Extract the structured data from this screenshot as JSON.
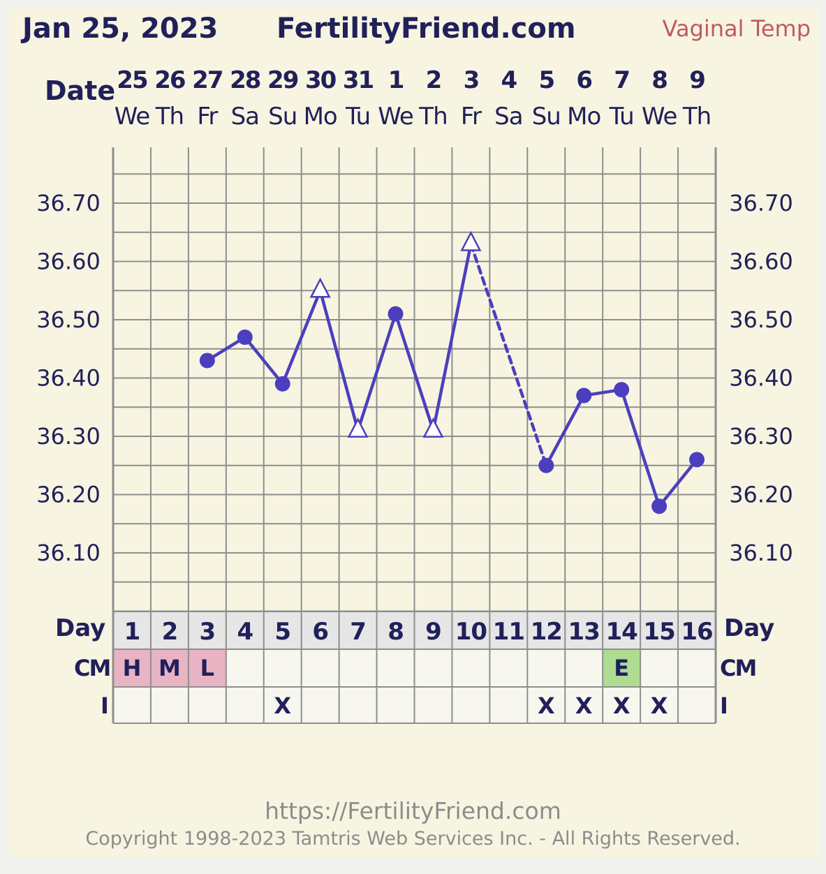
{
  "header": {
    "chart_date": "Jan 25, 2023",
    "site_name": "FertilityFriend.com",
    "temp_type": "Vaginal Temp",
    "date_label": "Date"
  },
  "colors": {
    "background": "#f7f5e1",
    "line": "#4b3fbf",
    "text": "#21205a",
    "cm_pink": "#e8b4c4",
    "cm_green": "#aedc90",
    "temp_label": "#c05a5e"
  },
  "chart_data": {
    "type": "line",
    "title": "",
    "ylabel": "",
    "ylim": [
      36.0,
      36.8
    ],
    "grid": true,
    "y_ticks": [
      "36.70",
      "36.60",
      "36.50",
      "36.40",
      "36.30",
      "36.20",
      "36.10"
    ],
    "y_tick_values": [
      36.7,
      36.6,
      36.5,
      36.4,
      36.3,
      36.2,
      36.1
    ],
    "dates": [
      "25",
      "26",
      "27",
      "28",
      "29",
      "30",
      "31",
      "1",
      "2",
      "3",
      "4",
      "5",
      "6",
      "7",
      "8",
      "9"
    ],
    "weekdays": [
      "We",
      "Th",
      "Fr",
      "Sa",
      "Su",
      "Mo",
      "Tu",
      "We",
      "Th",
      "Fr",
      "Sa",
      "Su",
      "Mo",
      "Tu",
      "We",
      "Th"
    ],
    "cycle_days": [
      "1",
      "2",
      "3",
      "4",
      "5",
      "6",
      "7",
      "8",
      "9",
      "10",
      "11",
      "12",
      "13",
      "14",
      "15",
      "16"
    ],
    "series": [
      {
        "values": [
          null,
          null,
          36.43,
          36.47,
          36.39,
          36.55,
          36.31,
          36.51,
          36.31,
          36.63,
          null,
          36.25,
          36.37,
          36.38,
          36.18,
          36.26
        ],
        "markers": [
          null,
          null,
          "dot",
          "dot",
          "dot",
          "triangle",
          "triangle",
          "dot",
          "triangle",
          "triangle",
          null,
          "dot",
          "dot",
          "dot",
          "dot",
          "dot"
        ]
      }
    ],
    "rows": {
      "day_label": "Day",
      "cm_label": "CM",
      "i_label": "I",
      "cm": [
        "H",
        "M",
        "L",
        "",
        "",
        "",
        "",
        "",
        "",
        "",
        "",
        "",
        "",
        "E",
        "",
        ""
      ],
      "cm_colors": [
        "pink",
        "pink",
        "pink",
        "",
        "",
        "",
        "",
        "",
        "",
        "",
        "",
        "",
        "",
        "green",
        "",
        ""
      ],
      "intercourse": [
        "",
        "",
        "",
        "",
        "X",
        "",
        "",
        "",
        "",
        "",
        "",
        "X",
        "X",
        "X",
        "X",
        ""
      ]
    }
  },
  "footer": {
    "url": "https://FertilityFriend.com",
    "copyright": "Copyright 1998-2023 Tamtris Web Services Inc. - All Rights Reserved."
  }
}
